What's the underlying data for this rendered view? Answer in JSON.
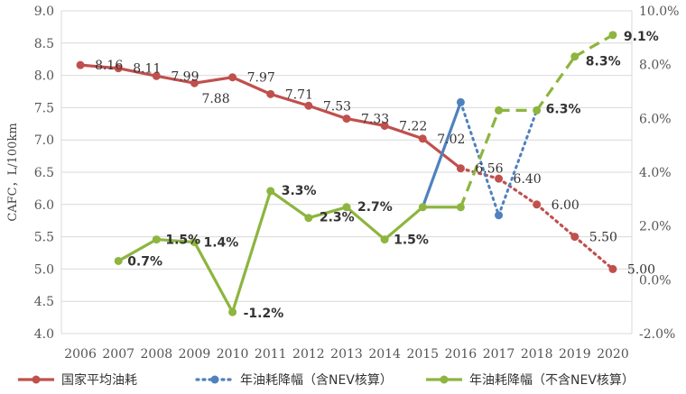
{
  "chart_data": {
    "type": "line",
    "title": "",
    "xlabel": "",
    "ylabel": "CAFC，L/100km",
    "categories": [
      "2006",
      "2007",
      "2008",
      "2009",
      "2010",
      "2011",
      "2012",
      "2013",
      "2014",
      "2015",
      "2016",
      "2017",
      "2018",
      "2019",
      "2020"
    ],
    "y_ticks": [
      "9.0",
      "8.5",
      "8.0",
      "7.5",
      "7.0",
      "6.5",
      "6.0",
      "5.5",
      "5.0",
      "4.5",
      "4.0"
    ],
    "y2_ticks": [
      "10.0%",
      "8.0%",
      "6.0%",
      "4.0%",
      "2.0%",
      "0.0%",
      "-2.0%"
    ],
    "ylim": [
      4.0,
      9.0
    ],
    "y2lim": [
      -2.0,
      10.0
    ],
    "grid": true,
    "legend_position": "bottom",
    "series": [
      {
        "name": "国家平均油耗",
        "axis": "left",
        "color": "#C0504D",
        "values": [
          8.16,
          8.11,
          7.99,
          7.88,
          7.97,
          7.71,
          7.53,
          7.33,
          7.22,
          7.02,
          6.56,
          6.4,
          6.0,
          5.5,
          5.0
        ],
        "labels": [
          "8.16",
          "8.11",
          "7.99",
          "7.88",
          "7.97",
          "7.71",
          "7.53",
          "7.33",
          "7.22",
          "7.02",
          "6.56",
          "6.40",
          "6.00",
          "5.50",
          "5.00"
        ],
        "solid_until_index": 10
      },
      {
        "name": "年油耗降幅（含NEV核算）",
        "axis": "right",
        "color": "#4F81BD",
        "values": [
          null,
          null,
          null,
          null,
          null,
          null,
          null,
          null,
          null,
          2.7,
          6.6,
          2.4,
          6.3,
          null,
          null
        ],
        "labels": [],
        "solid_until_index": 10
      },
      {
        "name": "年油耗降幅（不含NEV核算）",
        "axis": "right",
        "color": "#8DB53F",
        "values": [
          null,
          0.7,
          1.5,
          1.4,
          -1.2,
          3.3,
          2.3,
          2.7,
          1.5,
          2.7,
          2.7,
          6.3,
          6.3,
          8.3,
          9.1
        ],
        "labels": [
          "",
          "0.7%",
          "1.5%",
          "1.4%",
          "-1.2%",
          "3.3%",
          "2.3%",
          "2.7%",
          "1.5%",
          "",
          "",
          "",
          "6.3%",
          "8.3%",
          "9.1%"
        ],
        "solid_until_index": 10
      }
    ]
  }
}
